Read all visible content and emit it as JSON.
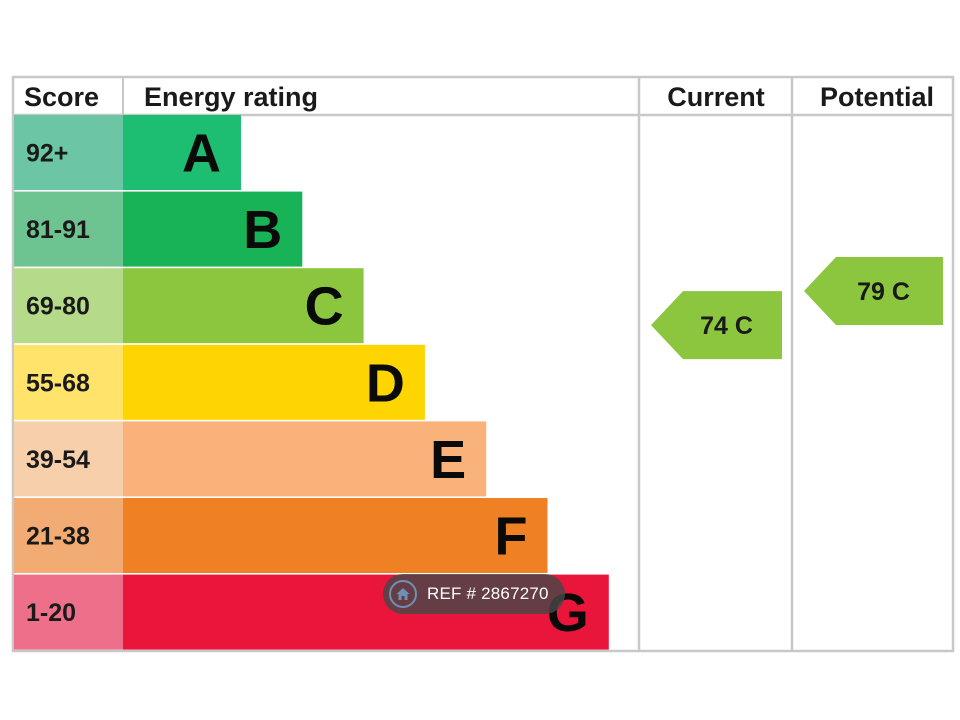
{
  "chart_data": {
    "type": "bar",
    "headers": {
      "score": "Score",
      "energy_rating": "Energy rating",
      "current": "Current",
      "potential": "Potential"
    },
    "bands": [
      {
        "letter": "A",
        "range": "92+",
        "min": 92,
        "max": 100,
        "color": "#1DBE72",
        "score_bg": "#6CC6A6"
      },
      {
        "letter": "B",
        "range": "81-91",
        "min": 81,
        "max": 91,
        "color": "#19B357",
        "score_bg": "#6EC490"
      },
      {
        "letter": "C",
        "range": "69-80",
        "min": 69,
        "max": 80,
        "color": "#8CC63F",
        "score_bg": "#B5DB8A"
      },
      {
        "letter": "D",
        "range": "55-68",
        "min": 55,
        "max": 68,
        "color": "#FFD500",
        "score_bg": "#FFE36A"
      },
      {
        "letter": "E",
        "range": "39-54",
        "min": 39,
        "max": 54,
        "color": "#F8B27A",
        "score_bg": "#F8CFAB"
      },
      {
        "letter": "F",
        "range": "21-38",
        "min": 21,
        "max": 38,
        "color": "#EF8023",
        "score_bg": "#F2AC73"
      },
      {
        "letter": "G",
        "range": "1-20",
        "min": 1,
        "max": 20,
        "color": "#E9153B",
        "score_bg": "#EE6F8A"
      }
    ],
    "current": {
      "score": 74,
      "band": "C",
      "label": "74 C",
      "color": "#8CC63F"
    },
    "potential": {
      "score": 79,
      "band": "C",
      "label": "79 C",
      "color": "#8CC63F"
    }
  },
  "watermark": {
    "text": "REF # 2867270",
    "icon": "house-icon"
  },
  "colors": {
    "grid": "#C8C8C8",
    "text": "#1a1a1a"
  }
}
